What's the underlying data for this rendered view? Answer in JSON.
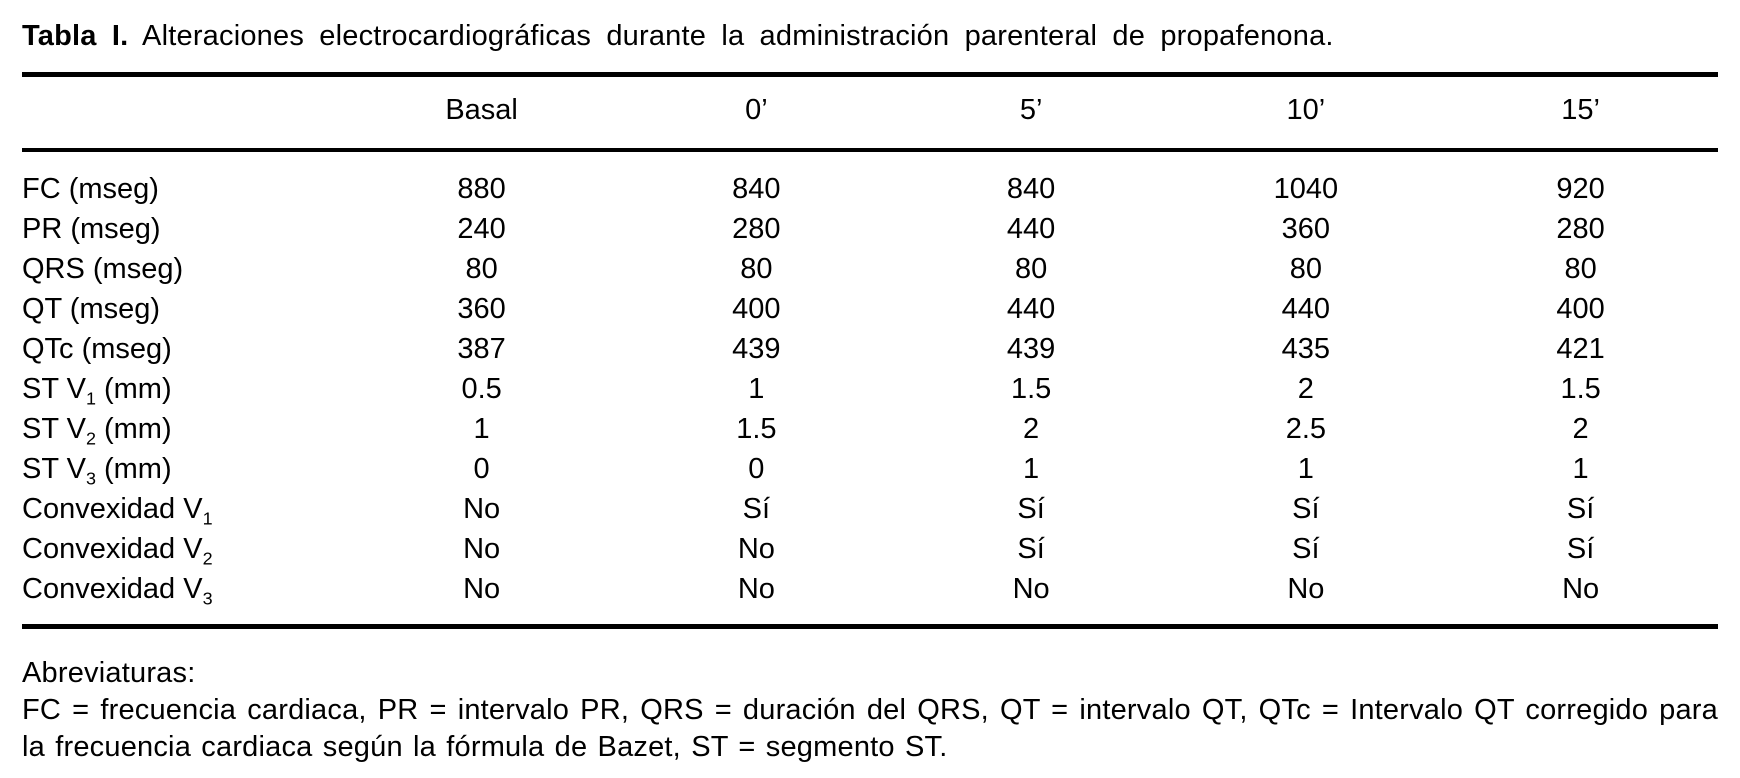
{
  "title": {
    "label": "Tabla I.",
    "text": "Alteraciones electrocardiográficas durante la administración parenteral de propafenona."
  },
  "table": {
    "columns": [
      "",
      "Basal",
      "0’",
      "5’",
      "10’",
      "15’"
    ],
    "rows": [
      {
        "label_pre": "FC (mseg)",
        "label_sub": "",
        "label_post": "",
        "values": [
          "880",
          "840",
          "840",
          "1040",
          "920"
        ]
      },
      {
        "label_pre": "PR (mseg)",
        "label_sub": "",
        "label_post": "",
        "values": [
          "240",
          "280",
          "440",
          "360",
          "280"
        ]
      },
      {
        "label_pre": "QRS (mseg)",
        "label_sub": "",
        "label_post": "",
        "values": [
          "80",
          "80",
          "80",
          "80",
          "80"
        ]
      },
      {
        "label_pre": "QT (mseg)",
        "label_sub": "",
        "label_post": "",
        "values": [
          "360",
          "400",
          "440",
          "440",
          "400"
        ]
      },
      {
        "label_pre": "QTc (mseg)",
        "label_sub": "",
        "label_post": "",
        "values": [
          "387",
          "439",
          "439",
          "435",
          "421"
        ]
      },
      {
        "label_pre": "ST V",
        "label_sub": "1",
        "label_post": " (mm)",
        "values": [
          "0.5",
          "1",
          "1.5",
          "2",
          "1.5"
        ]
      },
      {
        "label_pre": "ST V",
        "label_sub": "2",
        "label_post": " (mm)",
        "values": [
          "1",
          "1.5",
          "2",
          "2.5",
          "2"
        ]
      },
      {
        "label_pre": "ST V",
        "label_sub": "3",
        "label_post": " (mm)",
        "values": [
          "0",
          "0",
          "1",
          "1",
          "1"
        ]
      },
      {
        "label_pre": "Convexidad V",
        "label_sub": "1",
        "label_post": "",
        "values": [
          "No",
          "Sí",
          "Sí",
          "Sí",
          "Sí"
        ]
      },
      {
        "label_pre": "Convexidad V",
        "label_sub": "2",
        "label_post": "",
        "values": [
          "No",
          "No",
          "Sí",
          "Sí",
          "Sí"
        ]
      },
      {
        "label_pre": "Convexidad V",
        "label_sub": "3",
        "label_post": "",
        "values": [
          "No",
          "No",
          "No",
          "No",
          "No"
        ]
      }
    ]
  },
  "footnote": {
    "heading": "Abreviaturas:",
    "text": "FC = frecuencia cardiaca, PR = intervalo PR, QRS = duración del QRS, QT = intervalo QT, QTc = Intervalo QT corregido para la frecuencia cardiaca según la fórmula de Bazet, ST = segmento ST."
  },
  "colors": {
    "text": "#000000",
    "background": "#ffffff",
    "rule": "#000000"
  }
}
